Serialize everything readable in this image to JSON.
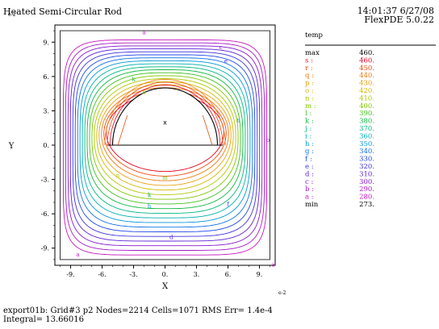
{
  "header": {
    "title": "Heated Semi-Circular Rod",
    "time": "14:01:37 6/27/08",
    "app": "FlexPDE 5.0.22"
  },
  "footer": {
    "line1": "export01b:  Grid#3  p2  Nodes=2214 Cells=1071 RMS Err= 1.4e-4",
    "line2": "Integral=  13.66016"
  },
  "chart_data": {
    "type": "contour",
    "xlabel": "X",
    "ylabel": "Y",
    "x_exponent": "e-2",
    "y_exponent": "e-2",
    "xlim": [
      -10.5,
      10.5
    ],
    "ylim": [
      -10.5,
      10.5
    ],
    "x_ticks": [
      -9,
      -6,
      -3,
      0,
      3,
      6,
      9
    ],
    "y_ticks": [
      9,
      6,
      3,
      0,
      -3,
      -6,
      -9
    ],
    "x_tick_labels": [
      "-9.",
      "-6.",
      "-3.",
      "0.",
      "3.",
      "6.",
      "9."
    ],
    "y_tick_labels": [
      "9.",
      "6.",
      "3.",
      "0.",
      "-3.",
      "-6.",
      "-9."
    ],
    "rod_radius": 5,
    "center_mark": "x",
    "legend": {
      "title": "temp",
      "max_label": "max",
      "max_value": "460.",
      "min_label": "min",
      "min_value": "273.",
      "levels": [
        {
          "label": "s :",
          "value": "460.",
          "color": "#e8001c"
        },
        {
          "label": "r :",
          "value": "450.",
          "color": "#ee4a10"
        },
        {
          "label": "q :",
          "value": "440.",
          "color": "#f07a10"
        },
        {
          "label": "p :",
          "value": "430.",
          "color": "#e8a010"
        },
        {
          "label": "o :",
          "value": "420.",
          "color": "#d0b800"
        },
        {
          "label": "n :",
          "value": "410.",
          "color": "#b0c800"
        },
        {
          "label": "m :",
          "value": "400.",
          "color": "#80c800"
        },
        {
          "label": "l :",
          "value": "390.",
          "color": "#40c020"
        },
        {
          "label": "k :",
          "value": "380.",
          "color": "#10b840"
        },
        {
          "label": "j :",
          "value": "370.",
          "color": "#00b880"
        },
        {
          "label": "i :",
          "value": "360.",
          "color": "#00b0b0"
        },
        {
          "label": "h :",
          "value": "350.",
          "color": "#0098d8"
        },
        {
          "label": "g :",
          "value": "340.",
          "color": "#1070e8"
        },
        {
          "label": "f :",
          "value": "330.",
          "color": "#2048e8"
        },
        {
          "label": "e :",
          "value": "320.",
          "color": "#4030e0"
        },
        {
          "label": "d :",
          "value": "310.",
          "color": "#6020d8"
        },
        {
          "label": "c :",
          "value": "300.",
          "color": "#8818d0"
        },
        {
          "label": "b :",
          "value": "290.",
          "color": "#a818c8"
        },
        {
          "label": "a :",
          "value": "280.",
          "color": "#c818c0"
        }
      ]
    },
    "contour_labels": [
      {
        "text": "a",
        "x": -8.3,
        "y": -9.5,
        "level": 0
      },
      {
        "text": "a",
        "x": -2.0,
        "y": 9.9,
        "level": 0
      },
      {
        "text": "a",
        "x": 10.3,
        "y": -10.4,
        "level": 0
      },
      {
        "text": "b",
        "x": 9.8,
        "y": 0.5,
        "level": 1
      },
      {
        "text": "c",
        "x": 5.3,
        "y": 8.6,
        "level": 2
      },
      {
        "text": "d",
        "x": 0.6,
        "y": -8.0,
        "level": 3
      },
      {
        "text": "e",
        "x": 5.8,
        "y": 7.4,
        "level": 4
      },
      {
        "text": "f",
        "x": 6.0,
        "y": -5.1,
        "level": 5
      },
      {
        "text": "h",
        "x": -1.5,
        "y": -5.3,
        "level": 7
      },
      {
        "text": "h",
        "x": 7.0,
        "y": 2.2,
        "level": 7
      },
      {
        "text": "k",
        "x": -3.0,
        "y": 5.8,
        "level": 10
      },
      {
        "text": "k",
        "x": -1.5,
        "y": -4.3,
        "level": 10
      },
      {
        "text": "n",
        "x": -4.5,
        "y": -2.6,
        "level": 13
      },
      {
        "text": "m",
        "x": 0.0,
        "y": -2.8,
        "level": 12
      },
      {
        "text": "n",
        "x": -2.0,
        "y": 4.7,
        "level": 13
      }
    ]
  }
}
